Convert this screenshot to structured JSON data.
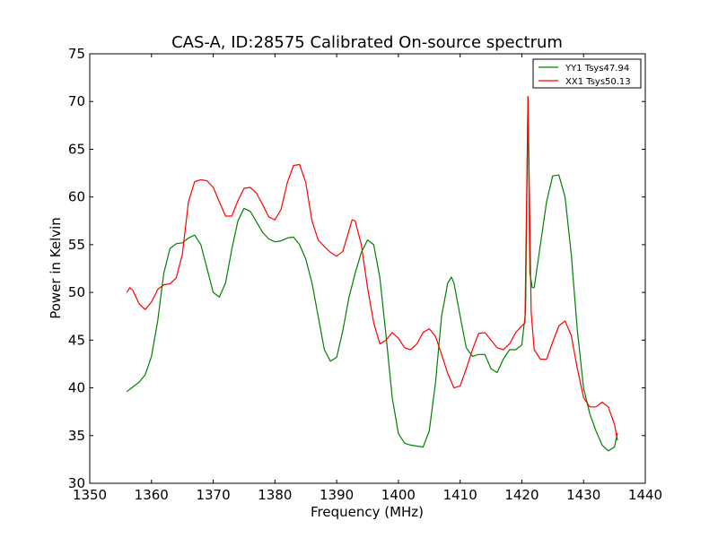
{
  "chart_data": {
    "type": "line",
    "title": "CAS-A, ID:28575 Calibrated On-source spectrum",
    "xlabel": "Frequency (MHz)",
    "ylabel": "Power in Kelvin",
    "xlim": [
      1350,
      1440
    ],
    "ylim": [
      30,
      75
    ],
    "xticks": [
      1350,
      1360,
      1370,
      1380,
      1390,
      1400,
      1410,
      1420,
      1430,
      1440
    ],
    "yticks": [
      30,
      35,
      40,
      45,
      50,
      55,
      60,
      65,
      70,
      75
    ],
    "grid": false,
    "legend_position": "top-right",
    "series": [
      {
        "name": "YY1 Tsys47.94",
        "color": "#008000",
        "x": [
          1356,
          1357,
          1358,
          1359,
          1360,
          1361,
          1362,
          1363,
          1364,
          1365,
          1366,
          1367,
          1368,
          1369,
          1370,
          1371,
          1372,
          1373,
          1374,
          1375,
          1376,
          1377,
          1378,
          1379,
          1380,
          1381,
          1382,
          1383,
          1384,
          1385,
          1386,
          1387,
          1388,
          1389,
          1390,
          1391,
          1392,
          1393,
          1394,
          1395,
          1396,
          1397,
          1398,
          1399,
          1400,
          1401,
          1402,
          1403,
          1404,
          1405,
          1406,
          1407,
          1408,
          1408.6,
          1409,
          1410,
          1411,
          1412,
          1413,
          1414,
          1415,
          1416,
          1417,
          1418,
          1419,
          1420,
          1420.6,
          1421,
          1421.3,
          1421.7,
          1422,
          1423,
          1424,
          1425,
          1426,
          1427,
          1428,
          1429,
          1430,
          1431,
          1432,
          1433,
          1434,
          1435,
          1435.5
        ],
        "y": [
          39.6,
          40.1,
          40.6,
          41.4,
          43.3,
          47.0,
          52.0,
          54.6,
          55.1,
          55.2,
          55.7,
          56.0,
          55.0,
          52.5,
          50.0,
          49.5,
          51.0,
          54.5,
          57.5,
          58.8,
          58.5,
          57.4,
          56.3,
          55.6,
          55.3,
          55.4,
          55.7,
          55.8,
          55.0,
          53.5,
          51.0,
          47.5,
          44.0,
          42.8,
          43.2,
          46.0,
          49.5,
          52.0,
          54.2,
          55.5,
          55.0,
          51.5,
          45.5,
          39.0,
          35.2,
          34.2,
          34.0,
          33.9,
          33.8,
          35.5,
          40.5,
          47.5,
          51.0,
          51.6,
          51.0,
          47.5,
          44.2,
          43.3,
          43.5,
          43.5,
          42.0,
          41.6,
          43.0,
          44.0,
          44.0,
          44.5,
          48.0,
          70.5,
          52.0,
          50.5,
          50.5,
          55.0,
          59.5,
          62.2,
          62.3,
          60.0,
          54.0,
          46.0,
          40.0,
          37.3,
          35.5,
          34.0,
          33.4,
          33.8,
          35.3
        ]
      },
      {
        "name": "XX1 Tsys50.13",
        "color": "#ff0000",
        "x": [
          1356,
          1356.5,
          1357,
          1358,
          1359,
          1360,
          1361,
          1362,
          1363,
          1364,
          1365,
          1366,
          1367,
          1368,
          1369,
          1370,
          1371,
          1372,
          1373,
          1374,
          1375,
          1376,
          1377,
          1378,
          1379,
          1380,
          1381,
          1382,
          1383,
          1384,
          1385,
          1386,
          1387,
          1388,
          1389,
          1390,
          1391,
          1392,
          1392.5,
          1393,
          1394,
          1395,
          1396,
          1397,
          1398,
          1399,
          1400,
          1401,
          1402,
          1403,
          1404,
          1405,
          1406,
          1407,
          1408,
          1409,
          1410,
          1411,
          1412,
          1413,
          1414,
          1415,
          1416,
          1417,
          1418,
          1419,
          1420,
          1420.5,
          1421,
          1421.5,
          1422,
          1423,
          1424,
          1425,
          1426,
          1427,
          1428,
          1429,
          1430,
          1431,
          1432,
          1433,
          1434,
          1435,
          1435.5
        ],
        "y": [
          50.0,
          50.5,
          50.2,
          48.8,
          48.2,
          49.0,
          50.3,
          50.8,
          50.9,
          51.5,
          54.0,
          59.5,
          61.6,
          61.8,
          61.7,
          61.0,
          59.5,
          58.0,
          58.0,
          59.6,
          60.9,
          61.0,
          60.4,
          59.2,
          57.9,
          57.6,
          58.7,
          61.5,
          63.3,
          63.4,
          61.5,
          57.5,
          55.5,
          54.8,
          54.2,
          53.8,
          54.3,
          56.5,
          57.6,
          57.5,
          55.0,
          50.5,
          46.8,
          44.6,
          45.0,
          45.8,
          45.2,
          44.2,
          44.0,
          44.6,
          45.8,
          46.2,
          45.4,
          43.5,
          41.5,
          40.0,
          40.2,
          42.0,
          44.0,
          45.7,
          45.8,
          45.0,
          44.2,
          44.0,
          44.6,
          45.8,
          46.5,
          46.8,
          70.5,
          48.0,
          44.0,
          43.0,
          43.0,
          44.8,
          46.5,
          47.0,
          45.5,
          42.0,
          39.0,
          38.0,
          38.0,
          38.5,
          38.0,
          36.2,
          34.5
        ]
      }
    ]
  }
}
